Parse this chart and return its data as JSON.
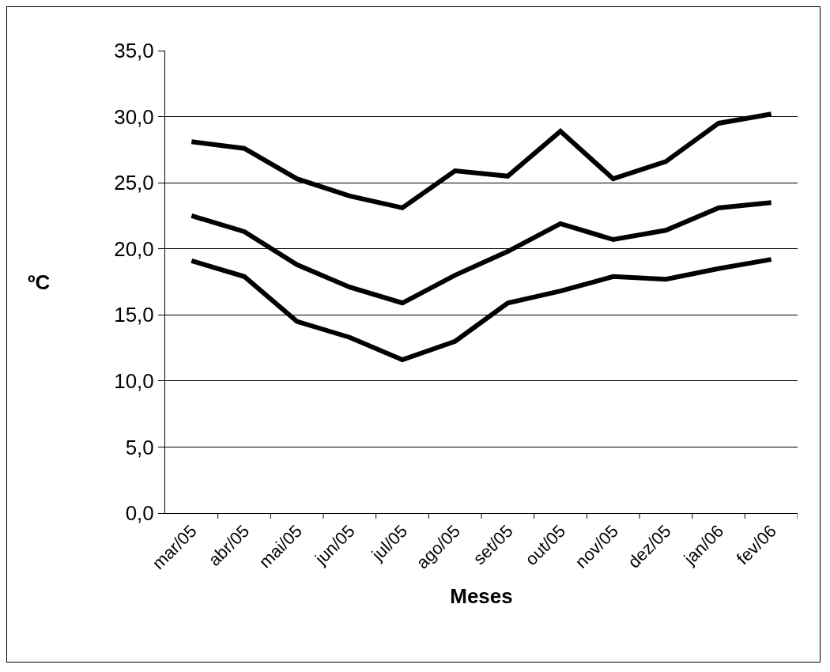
{
  "chart_data": {
    "type": "line",
    "xlabel": "Meses",
    "ylabel": "ºC",
    "categories": [
      "mar/05",
      "abr/05",
      "mai/05",
      "jun/05",
      "jul/05",
      "ago/05",
      "set/05",
      "out/05",
      "nov/05",
      "dez/05",
      "jan/06",
      "fev/06"
    ],
    "series": [
      {
        "color": "#000000",
        "values": [
          28.1,
          27.6,
          25.3,
          24.0,
          23.1,
          25.9,
          25.5,
          28.9,
          25.3,
          26.6,
          29.5,
          30.2
        ]
      },
      {
        "color": "#000000",
        "values": [
          22.5,
          21.3,
          18.8,
          17.1,
          15.9,
          18.0,
          19.8,
          21.9,
          20.7,
          21.4,
          23.1,
          23.5
        ]
      },
      {
        "color": "#000000",
        "values": [
          19.1,
          17.9,
          14.5,
          13.3,
          11.6,
          13.0,
          15.9,
          16.8,
          17.9,
          17.7,
          18.5,
          19.2
        ]
      }
    ],
    "ylim": [
      0,
      35
    ],
    "yticks": [
      {
        "value": 0,
        "label": "0,0"
      },
      {
        "value": 5,
        "label": "5,0"
      },
      {
        "value": 10,
        "label": "10,0"
      },
      {
        "value": 15,
        "label": "15,0"
      },
      {
        "value": 20,
        "label": "20,0"
      },
      {
        "value": 25,
        "label": "25,0"
      },
      {
        "value": 30,
        "label": "30,0"
      },
      {
        "value": 35,
        "label": "35,0"
      }
    ],
    "grid": "y",
    "marker": "none",
    "line_style": "solid"
  }
}
